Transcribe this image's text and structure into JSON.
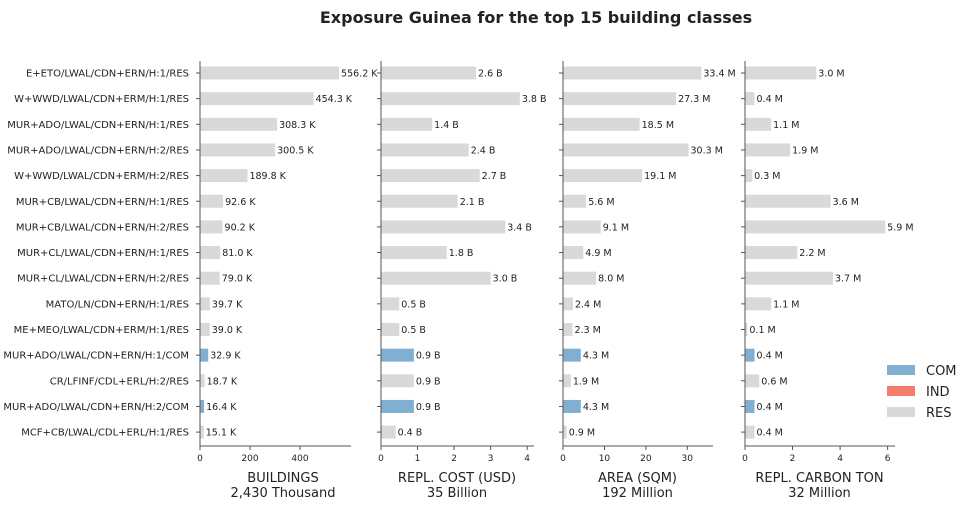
{
  "title": "Exposure Guinea for the top 15 building classes",
  "chart_data": {
    "type": "bar",
    "orientation": "horizontal",
    "title": "Exposure Guinea for the top 15 building classes",
    "categories": [
      "E+ETO/LWAL/CDN+ERN/H:1/RES",
      "W+WWD/LWAL/CDN+ERM/H:1/RES",
      "MUR+ADO/LWAL/CDN+ERN/H:1/RES",
      "MUR+ADO/LWAL/CDN+ERN/H:2/RES",
      "W+WWD/LWAL/CDN+ERM/H:2/RES",
      "MUR+CB/LWAL/CDN+ERN/H:1/RES",
      "MUR+CB/LWAL/CDN+ERN/H:2/RES",
      "MUR+CL/LWAL/CDN+ERN/H:1/RES",
      "MUR+CL/LWAL/CDN+ERN/H:2/RES",
      "MATO/LN/CDN+ERN/H:1/RES",
      "ME+MEO/LWAL/CDN+ERM/H:1/RES",
      "MUR+ADO/LWAL/CDN+ERN/H:1/COM",
      "CR/LFINF/CDL+ERL/H:2/RES",
      "MUR+ADO/LWAL/CDN+ERN/H:2/COM",
      "MCF+CB/LWAL/CDL+ERL/H:1/RES"
    ],
    "occupancy": [
      "RES",
      "RES",
      "RES",
      "RES",
      "RES",
      "RES",
      "RES",
      "RES",
      "RES",
      "RES",
      "RES",
      "COM",
      "RES",
      "COM",
      "RES"
    ],
    "colors": {
      "COM": "#80afd1",
      "IND": "#f47e6d",
      "RES": "#d9d9d9"
    },
    "legend": {
      "position": "right",
      "entries": [
        "COM",
        "IND",
        "RES"
      ]
    },
    "panels": [
      {
        "xlabel": "BUILDINGS",
        "total": "2,430 Thousand",
        "xlim": [
          0,
          580
        ],
        "xticks": [
          0,
          200,
          400
        ],
        "values": [
          556.2,
          454.3,
          308.3,
          300.5,
          189.8,
          92.6,
          90.2,
          81.0,
          79.0,
          39.7,
          39.0,
          32.9,
          18.7,
          16.4,
          15.1
        ],
        "value_labels": [
          "556.2 K",
          "454.3 K",
          "308.3 K",
          "300.5 K",
          "189.8 K",
          "92.6 K",
          "90.2 K",
          "81.0 K",
          "79.0 K",
          "39.7 K",
          "39.0 K",
          "32.9 K",
          "18.7 K",
          "16.4 K",
          "15.1 K"
        ]
      },
      {
        "xlabel": "REPL. COST (USD)",
        "total": "35 Billion",
        "xlim": [
          0,
          4.05
        ],
        "xticks": [
          0,
          1,
          2,
          3,
          4
        ],
        "values": [
          2.6,
          3.8,
          1.4,
          2.4,
          2.7,
          2.1,
          3.4,
          1.8,
          3.0,
          0.5,
          0.5,
          0.9,
          0.9,
          0.9,
          0.4
        ],
        "value_labels": [
          "2.6 B",
          "3.8 B",
          "1.4 B",
          "2.4 B",
          "2.7 B",
          "2.1 B",
          "3.4 B",
          "1.8 B",
          "3.0 B",
          "0.5 B",
          "0.5 B",
          "0.9 B",
          "0.9 B",
          "0.9 B",
          "0.4 B"
        ]
      },
      {
        "xlabel": "AREA (SQM)",
        "total": "192 Million",
        "xlim": [
          0,
          35
        ],
        "xticks": [
          0,
          10,
          20,
          30
        ],
        "values": [
          33.4,
          27.3,
          18.5,
          30.3,
          19.1,
          5.6,
          9.1,
          4.9,
          8.0,
          2.4,
          2.3,
          4.3,
          1.9,
          4.3,
          0.9
        ],
        "value_labels": [
          "33.4 M",
          "27.3 M",
          "18.5 M",
          "30.3 M",
          "19.1 M",
          "5.6 M",
          "9.1 M",
          "4.9 M",
          "8.0 M",
          "2.4 M",
          "2.3 M",
          "4.3 M",
          "1.9 M",
          "4.3 M",
          "0.9 M"
        ]
      },
      {
        "xlabel": "REPL. CARBON TON",
        "total": "32 Million",
        "xlim": [
          0,
          6.1
        ],
        "xticks": [
          0,
          2,
          4,
          6
        ],
        "values": [
          3.0,
          0.4,
          1.1,
          1.9,
          0.3,
          3.6,
          5.9,
          2.2,
          3.7,
          1.1,
          0.1,
          0.4,
          0.6,
          0.4,
          0.4
        ],
        "value_labels": [
          "3.0 M",
          "0.4 M",
          "1.1 M",
          "1.9 M",
          "0.3 M",
          "3.6 M",
          "5.9 M",
          "2.2 M",
          "3.7 M",
          "1.1 M",
          "0.1 M",
          "0.4 M",
          "0.6 M",
          "0.4 M",
          "0.4 M"
        ]
      }
    ]
  }
}
